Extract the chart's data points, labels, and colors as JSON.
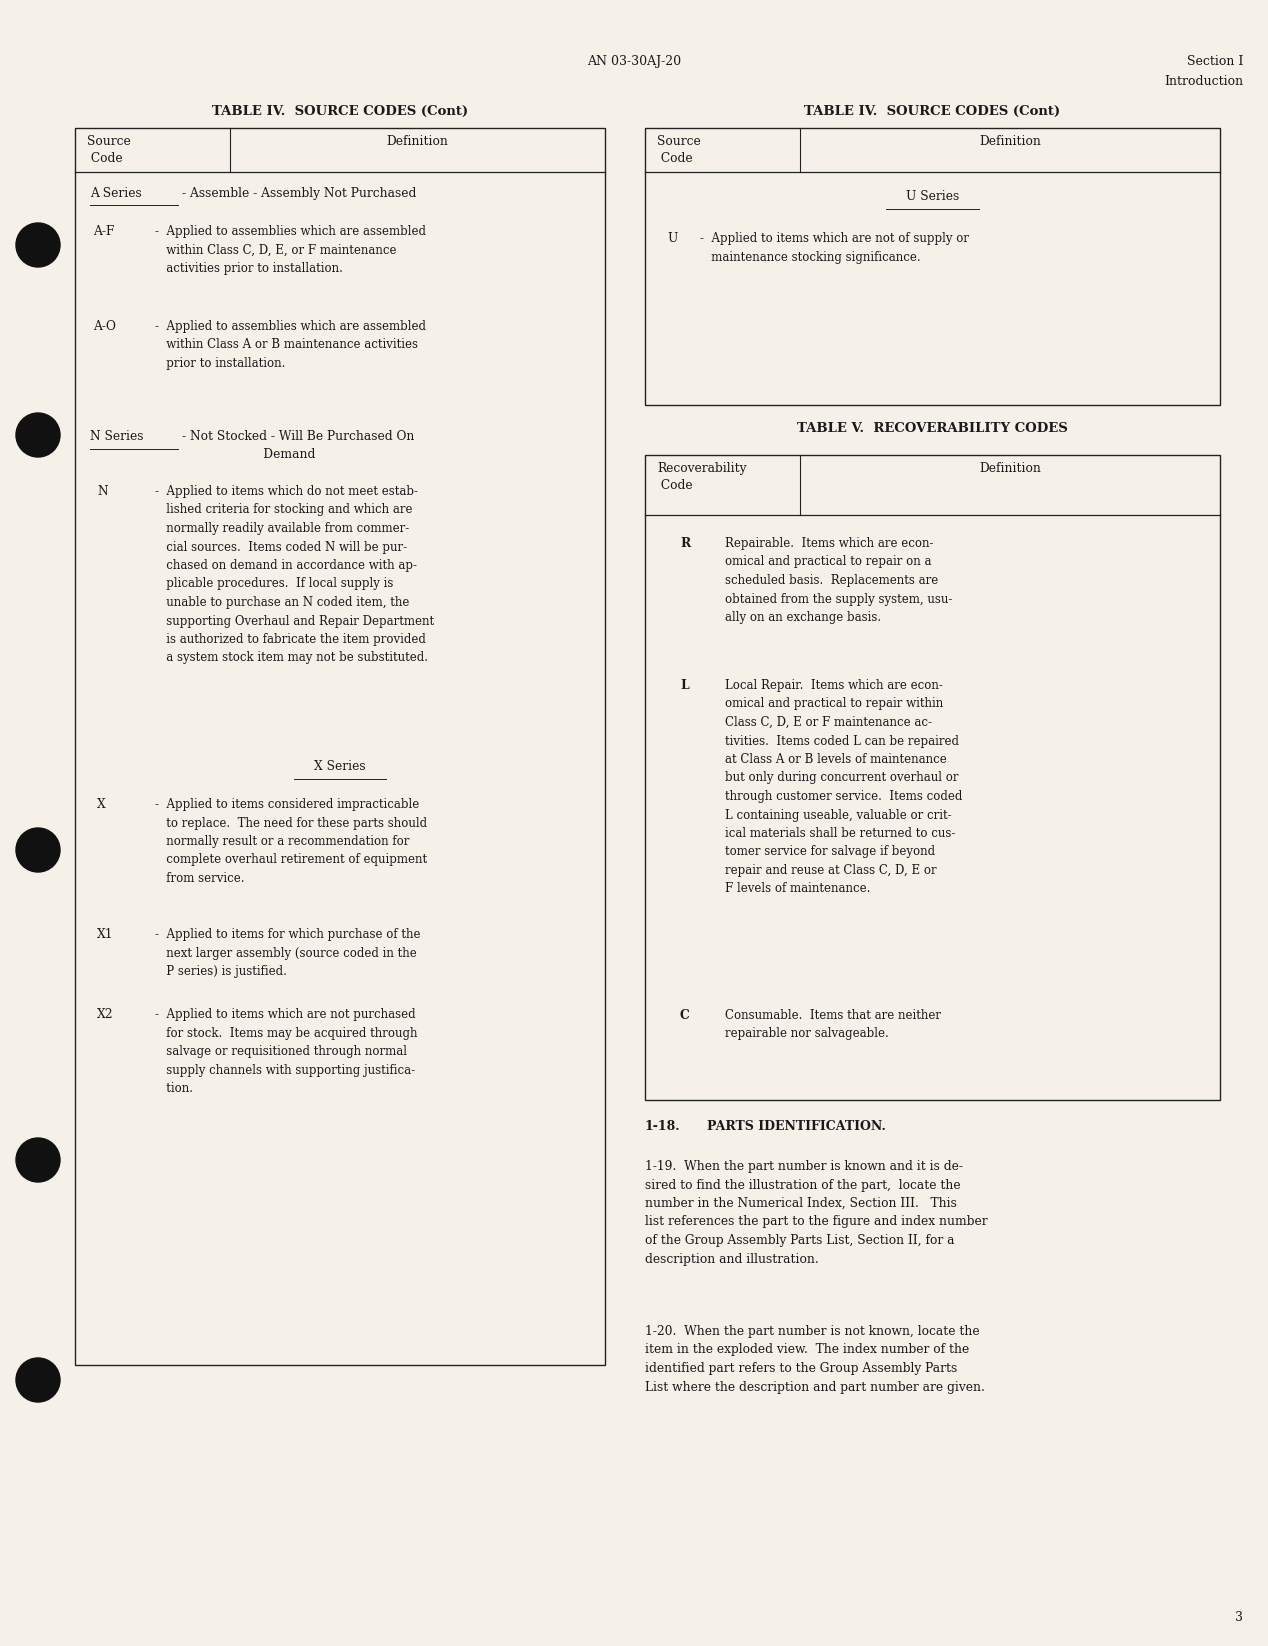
{
  "page_bg": "#f5f0e8",
  "text_color": "#1a1a1a",
  "header_doc_num": "AN 03-30AJ-20",
  "page_num": "3",
  "left_title": "TABLE IV.  SOURCE CODES (Cont)",
  "right_title": "TABLE IV.  SOURCE CODES (Cont)",
  "right_title2": "TABLE V.  RECOVERABILITY CODES"
}
